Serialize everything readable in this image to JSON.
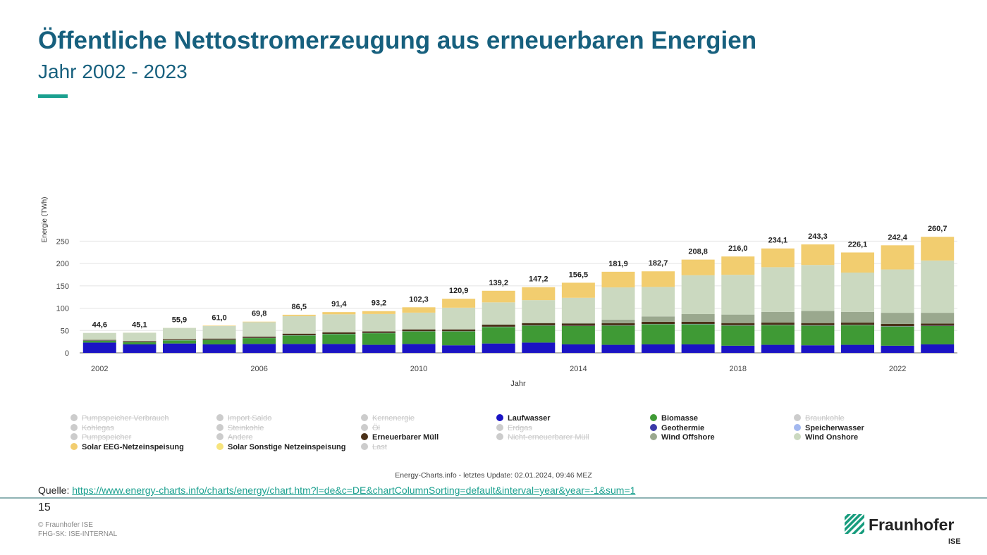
{
  "slide": {
    "title": "Öffentliche Nettostromerzeugung aus erneuerbaren Energien",
    "subtitle": "Jahr 2002 - 2023",
    "source_label": "Quelle:",
    "source_url": "https://www.energy-charts.info/charts/energy/chart.htm?l=de&c=DE&chartColumnSorting=default&interval=year&year=-1&sum=1",
    "page_number": "15",
    "copyright": "© Fraunhofer ISE",
    "classification": "FHG-SK: ISE-INTERNAL",
    "logo_text": "Fraunhofer",
    "logo_sub": "ISE",
    "accent_color": "#1aa08f",
    "title_color": "#17607e"
  },
  "chart_data": {
    "type": "bar",
    "stacked": true,
    "title": "",
    "xlabel": "Jahr",
    "ylabel": "Energie (TWh)",
    "ylim": [
      0,
      260
    ],
    "yticks": [
      0,
      50,
      100,
      150,
      200,
      250
    ],
    "xtick_labels": [
      "2002",
      "2006",
      "2010",
      "2014",
      "2018",
      "2022"
    ],
    "categories": [
      "2002",
      "2003",
      "2004",
      "2005",
      "2006",
      "2007",
      "2008",
      "2009",
      "2010",
      "2011",
      "2012",
      "2013",
      "2014",
      "2015",
      "2016",
      "2017",
      "2018",
      "2019",
      "2020",
      "2021",
      "2022",
      "2023"
    ],
    "totals": [
      "44,6",
      "45,1",
      "55,9",
      "61,0",
      "69,8",
      "86,5",
      "91,4",
      "93,2",
      "102,3",
      "120,9",
      "139,2",
      "147,2",
      "156,5",
      "181,9",
      "182,7",
      "208,8",
      "216,0",
      "234,1",
      "243,3",
      "226,1",
      "242,4",
      "260,7"
    ],
    "series": [
      {
        "name": "Laufwasser",
        "color": "#1a13c4",
        "values": [
          23,
          19,
          21,
          19,
          20,
          20,
          20,
          18,
          20,
          17,
          21,
          23,
          19,
          18,
          19,
          19,
          16,
          18,
          17,
          18,
          16,
          19
        ]
      },
      {
        "name": "Biomasse",
        "color": "#3f9a35",
        "values": [
          4,
          5,
          7,
          10,
          13,
          19,
          22,
          26,
          28,
          31,
          37,
          38,
          41,
          43,
          45,
          45,
          45,
          44,
          44,
          44,
          43,
          41
        ]
      },
      {
        "name": "Speicherwasser",
        "color": "#a3b8ef",
        "values": [
          0.5,
          0.5,
          0.5,
          0.5,
          0.5,
          0.5,
          0.5,
          0.5,
          0.5,
          0.5,
          0.5,
          0.5,
          0.5,
          0.5,
          0.5,
          0.5,
          0.5,
          0.5,
          0.5,
          0.5,
          0.5,
          0.5
        ]
      },
      {
        "name": "Geothermie",
        "color": "#3a3aa8",
        "values": [
          0,
          0,
          0,
          0,
          0,
          0,
          0,
          0,
          0,
          0,
          0,
          0,
          0,
          0,
          0,
          0.2,
          0.2,
          0.2,
          0.2,
          0.2,
          0.2,
          0.2
        ]
      },
      {
        "name": "Erneuerbarer Müll",
        "color": "#4a3018",
        "values": [
          1.5,
          2,
          2,
          2.5,
          3,
          3.5,
          3.5,
          3.5,
          4,
          4,
          4.5,
          5,
          5,
          5,
          5,
          5,
          5,
          5,
          5,
          5,
          5,
          5
        ]
      },
      {
        "name": "Wind Offshore",
        "color": "#9aa88e",
        "values": [
          0,
          0,
          0,
          0,
          0,
          0,
          0,
          0,
          0.2,
          0.6,
          0.7,
          0.9,
          1.3,
          8,
          12,
          17,
          19,
          24,
          27,
          24,
          25,
          24
        ]
      },
      {
        "name": "Wind Onshore",
        "color": "#cbd9c0",
        "values": [
          15.6,
          18.5,
          25.3,
          28,
          32.3,
          39.3,
          40.2,
          38.9,
          37.3,
          48,
          49.3,
          50.6,
          56.5,
          72,
          66,
          87,
          89,
          100,
          103,
          88,
          97,
          117
        ]
      },
      {
        "name": "Solar EEG-Netzeinspeisung",
        "color": "#f2cd6f",
        "values": [
          0,
          0.1,
          0.1,
          1,
          1,
          3,
          5,
          6.5,
          12,
          20,
          26,
          29,
          33.7,
          35,
          35,
          35,
          41,
          42,
          46,
          45,
          54,
          53
        ]
      },
      {
        "name": "Solar Sonstige Netzeinspeisung",
        "color": "#f7e47d",
        "values": [
          0,
          0,
          0,
          0,
          0,
          0,
          0,
          0,
          0,
          0,
          0,
          0,
          0,
          0,
          0,
          0,
          0,
          0,
          0,
          0,
          0,
          0
        ]
      }
    ],
    "legend": [
      [
        {
          "label": "Pumpspeicher Verbrauch",
          "color": "#cccccc",
          "active": false
        },
        {
          "label": "Import Saldo",
          "color": "#cccccc",
          "active": false
        },
        {
          "label": "Kernenergie",
          "color": "#cccccc",
          "active": false
        },
        {
          "label": "Laufwasser",
          "color": "#1a13c4",
          "active": true
        },
        {
          "label": "Biomasse",
          "color": "#3f9a35",
          "active": true
        },
        {
          "label": "Braunkohle",
          "color": "#cccccc",
          "active": false
        }
      ],
      [
        {
          "label": "Kohlegas",
          "color": "#cccccc",
          "active": false
        },
        {
          "label": "Steinkohle",
          "color": "#cccccc",
          "active": false
        },
        {
          "label": "Öl",
          "color": "#cccccc",
          "active": false
        },
        {
          "label": "Erdgas",
          "color": "#cccccc",
          "active": false
        },
        {
          "label": "Geothermie",
          "color": "#3a3aa8",
          "active": true
        },
        {
          "label": "Speicherwasser",
          "color": "#a3b8ef",
          "active": true
        }
      ],
      [
        {
          "label": "Pumpspeicher",
          "color": "#cccccc",
          "active": false
        },
        {
          "label": "Andere",
          "color": "#cccccc",
          "active": false
        },
        {
          "label": "Erneuerbarer Müll",
          "color": "#4a3018",
          "active": true
        },
        {
          "label": "Nicht-erneuerbarer Müll",
          "color": "#cccccc",
          "active": false
        },
        {
          "label": "Wind Offshore",
          "color": "#9aa88e",
          "active": true
        },
        {
          "label": "Wind Onshore",
          "color": "#cbd9c0",
          "active": true
        }
      ],
      [
        {
          "label": "Solar EEG-Netzeinspeisung",
          "color": "#f2cd6f",
          "active": true
        },
        {
          "label": "Solar Sonstige Netzeinspeisung",
          "color": "#f7e47d",
          "active": true
        },
        {
          "label": "Last",
          "color": "#cccccc",
          "active": false
        }
      ]
    ],
    "footnote": "Energy-Charts.info - letztes Update: 02.01.2024, 09:46 MEZ"
  }
}
